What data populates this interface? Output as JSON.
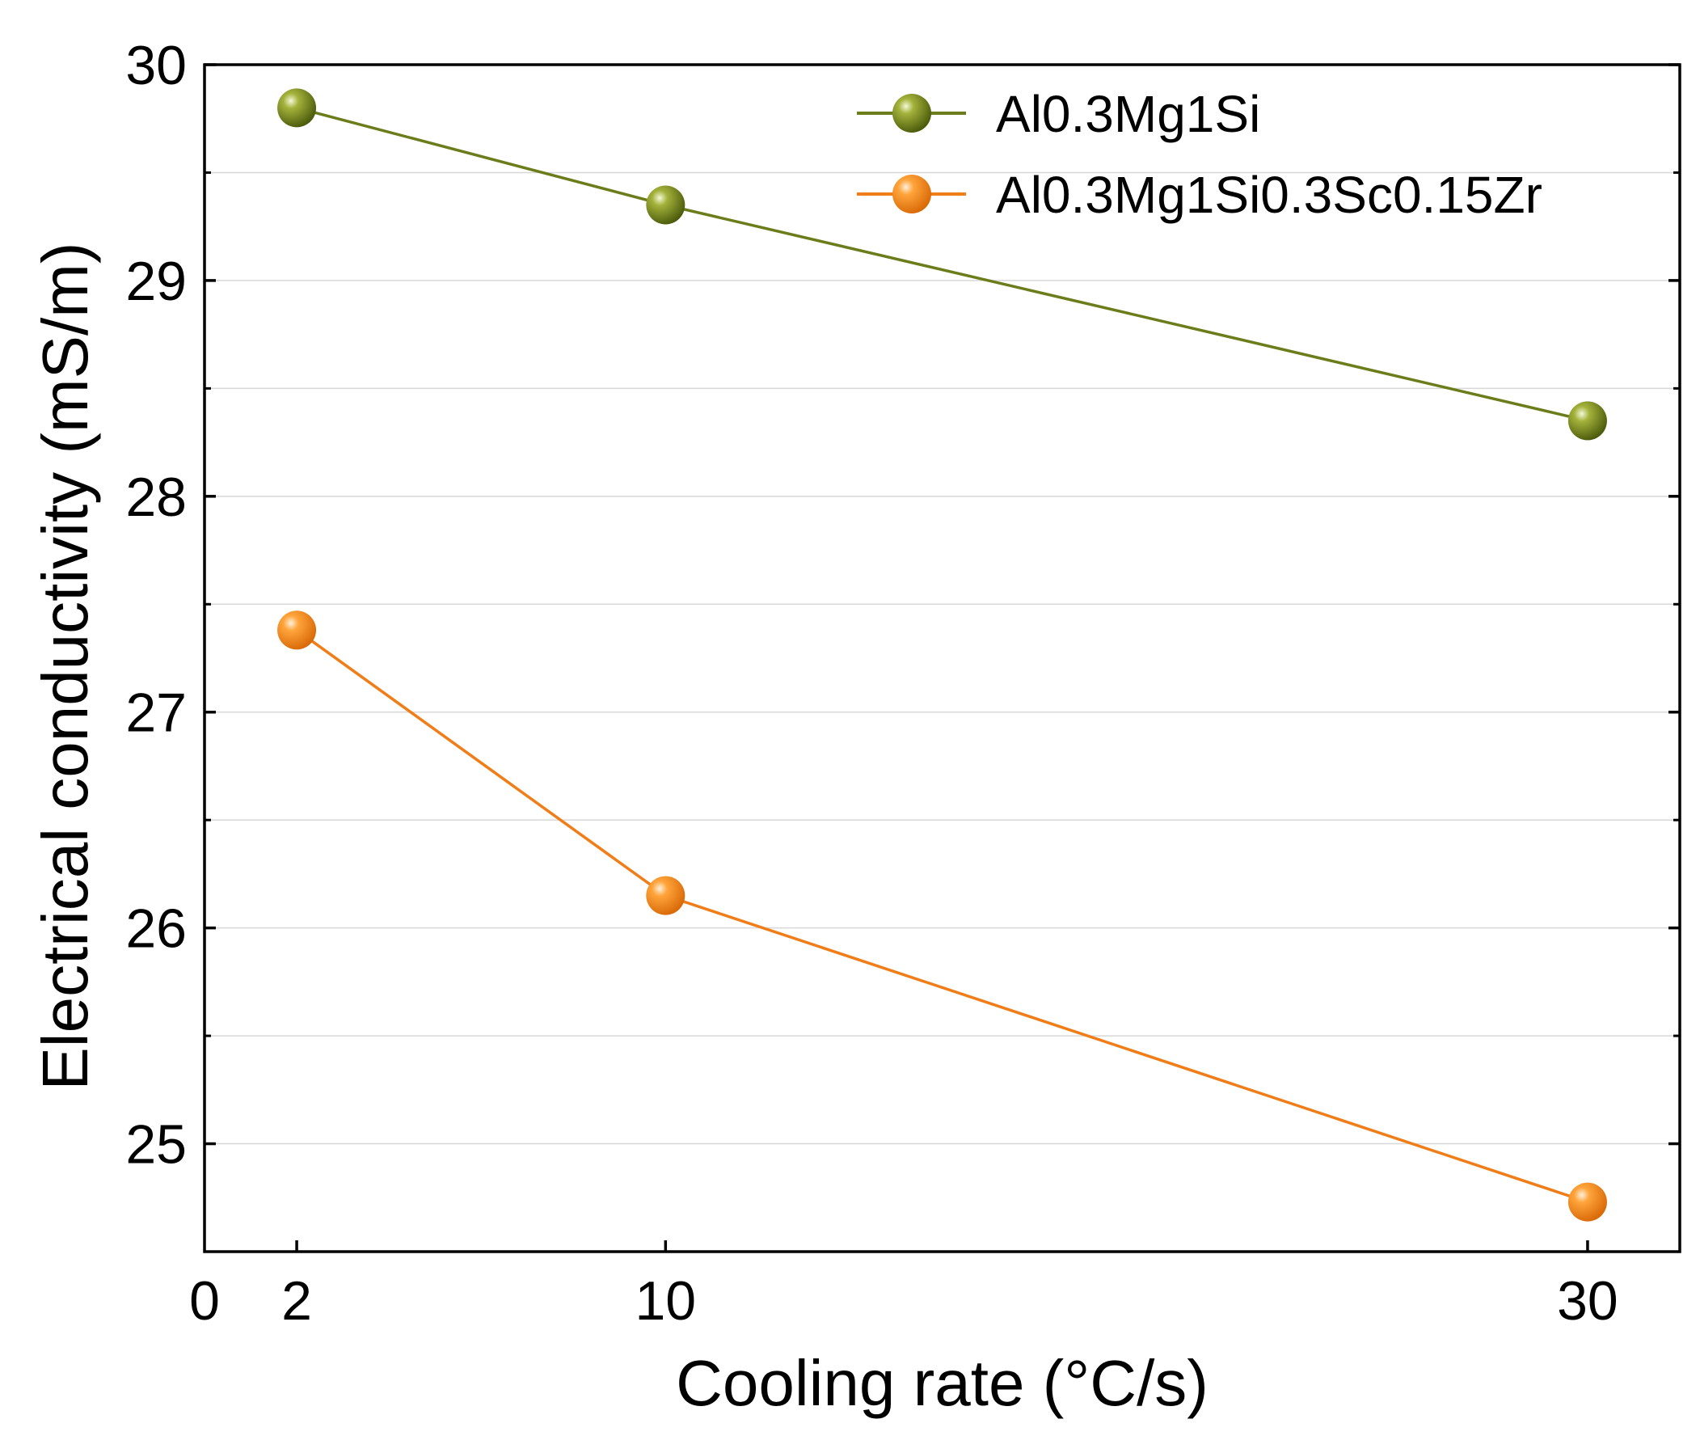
{
  "chart_data": {
    "type": "line",
    "title": "",
    "xlabel": "Cooling rate (°C/s)",
    "ylabel": "Electrical conductivity (mS/m)",
    "xlim": [
      0,
      32
    ],
    "ylim": [
      24.5,
      30
    ],
    "xticks": [
      0,
      2,
      10,
      30
    ],
    "yticks": [
      25,
      26,
      27,
      28,
      29,
      30
    ],
    "yminor": [
      25.5,
      26.5,
      27.5,
      28.5,
      29.5
    ],
    "x": [
      2,
      10,
      30
    ],
    "series": [
      {
        "name": "Al0.3Mg1Si",
        "values": [
          29.8,
          29.35,
          28.35
        ],
        "color": "#6b7d1a",
        "marker_color": "#6f7f17"
      },
      {
        "name": "Al0.3Mg1Si0.3Sc0.15Zr",
        "values": [
          27.38,
          26.15,
          24.73
        ],
        "color": "#f07d17",
        "marker_color": "#f28a1f"
      }
    ],
    "legend_position": "top-right",
    "grid": "horizontal"
  }
}
